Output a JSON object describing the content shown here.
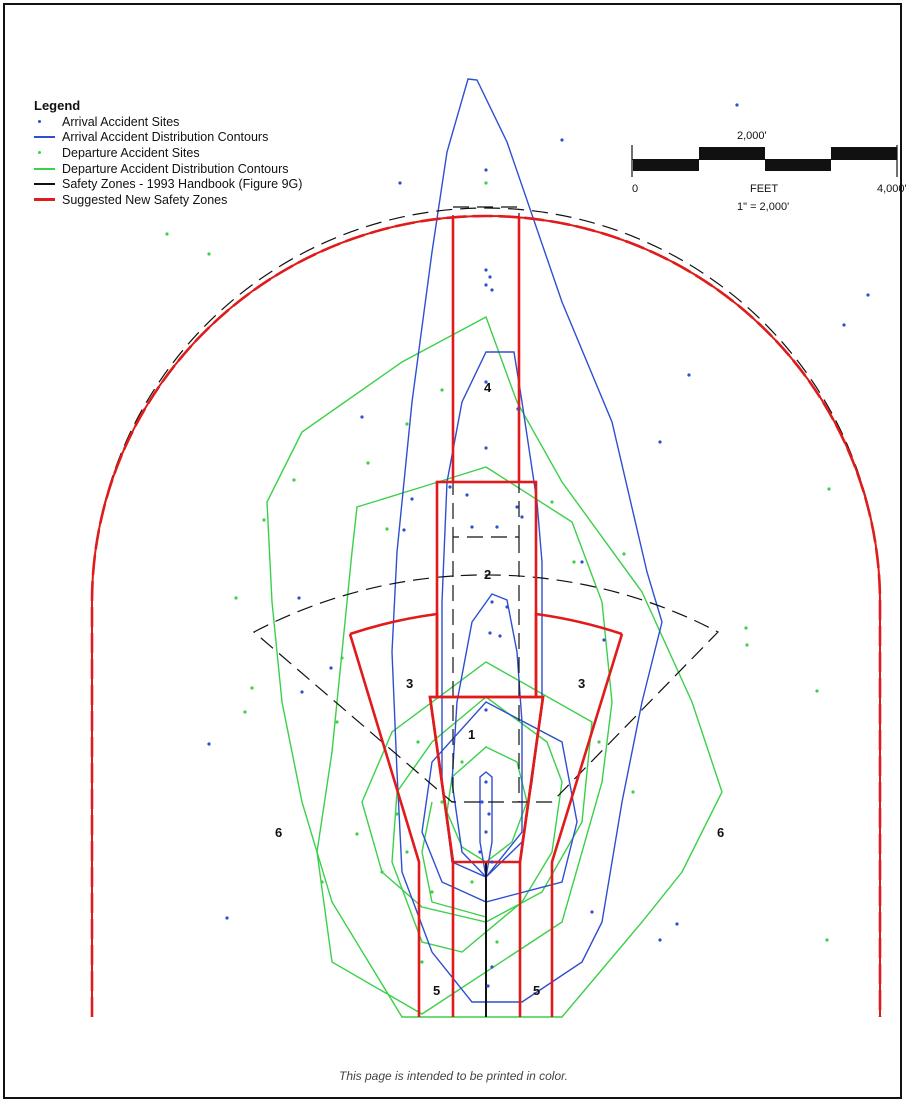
{
  "legend": {
    "title": "Legend",
    "items": [
      {
        "label": "Arrival Accident Sites",
        "symbol": "dot",
        "color": "#2e4fd0"
      },
      {
        "label": "Arrival Accident Distribution Contours",
        "symbol": "line",
        "color": "#2e4fd0"
      },
      {
        "label": "Departure Accident Sites",
        "symbol": "dot",
        "color": "#3cd04a"
      },
      {
        "label": "Departure Accident Distribution Contours",
        "symbol": "line",
        "color": "#3cd04a"
      },
      {
        "label": "Safety Zones - 1993 Handbook (Figure 9G)",
        "symbol": "line",
        "color": "#111111"
      },
      {
        "label": "Suggested New Safety Zones",
        "symbol": "thick-line",
        "color": "#e01b1b"
      }
    ]
  },
  "scale": {
    "top_label": "2,000'",
    "start": "0",
    "units": "FEET",
    "end": "4,000'",
    "ratio": "1\" = 2,000'"
  },
  "zones": {
    "z1": "1",
    "z2": "2",
    "z3_left": "3",
    "z3_right": "3",
    "z4": "4",
    "z5_left": "5",
    "z5_right": "5",
    "z6_left": "6",
    "z6_right": "6"
  },
  "colors": {
    "arrival": "#2e4fd0",
    "departure": "#3cd04a",
    "old_zones": "#111111",
    "new_zones": "#e01b1b"
  },
  "footer": "This page is intended to be printed in color."
}
